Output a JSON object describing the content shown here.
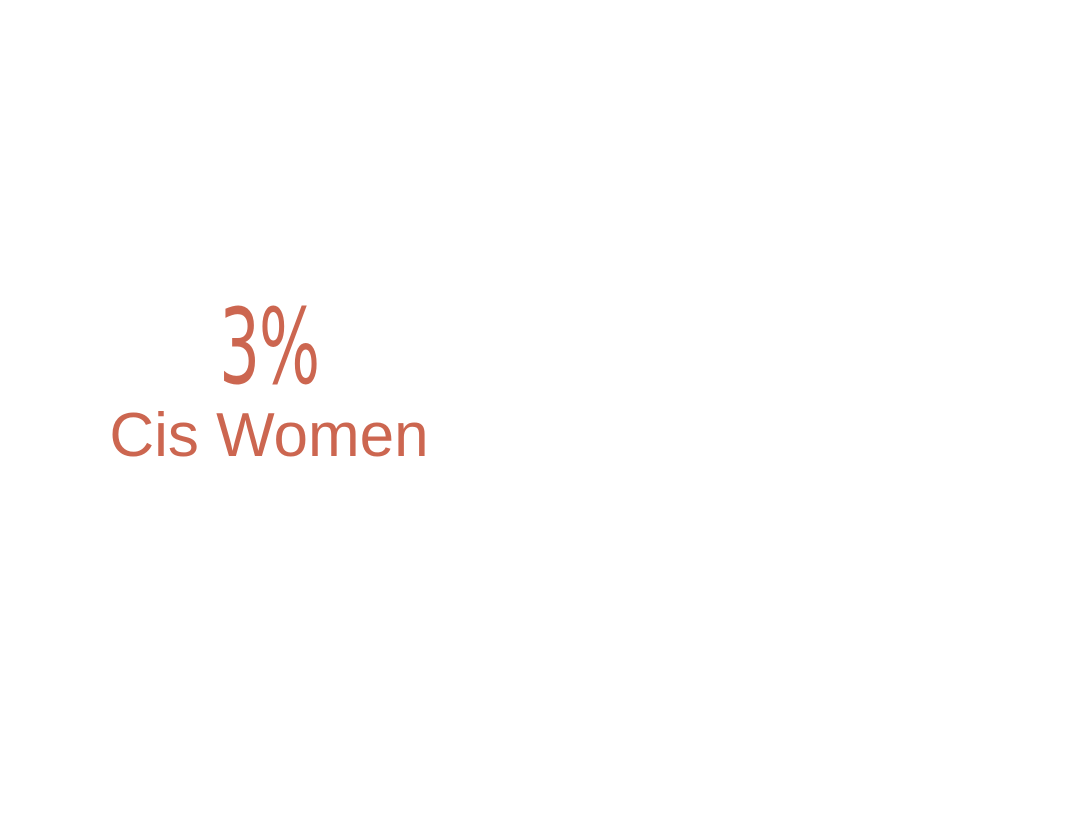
{
  "stat": {
    "value": "3%",
    "label": "Cis Women"
  },
  "colors": {
    "accent": "#cc6650",
    "background": "#ffffff"
  }
}
